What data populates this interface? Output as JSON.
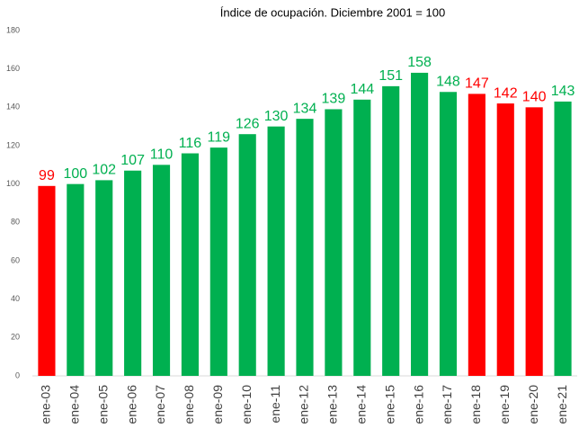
{
  "chart_data": {
    "type": "bar",
    "title": "Índice de ocupación. Diciembre 2001 = 100",
    "categories": [
      "ene-03",
      "ene-04",
      "ene-05",
      "ene-06",
      "ene-07",
      "ene-08",
      "ene-09",
      "ene-10",
      "ene-11",
      "ene-12",
      "ene-13",
      "ene-14",
      "ene-15",
      "ene-16",
      "ene-17",
      "ene-18",
      "ene-19",
      "ene-20",
      "ene-21"
    ],
    "values": [
      99,
      100,
      102,
      107,
      110,
      116,
      119,
      126,
      130,
      134,
      139,
      144,
      151,
      158,
      148,
      147,
      142,
      140,
      143
    ],
    "colors": [
      "#ff0000",
      "#00b050",
      "#00b050",
      "#00b050",
      "#00b050",
      "#00b050",
      "#00b050",
      "#00b050",
      "#00b050",
      "#00b050",
      "#00b050",
      "#00b050",
      "#00b050",
      "#00b050",
      "#00b050",
      "#ff0000",
      "#ff0000",
      "#ff0000",
      "#00b050"
    ],
    "ylim": [
      0,
      180
    ],
    "yticks": [
      0,
      20,
      40,
      60,
      80,
      100,
      120,
      140,
      160,
      180
    ],
    "grid": false
  }
}
